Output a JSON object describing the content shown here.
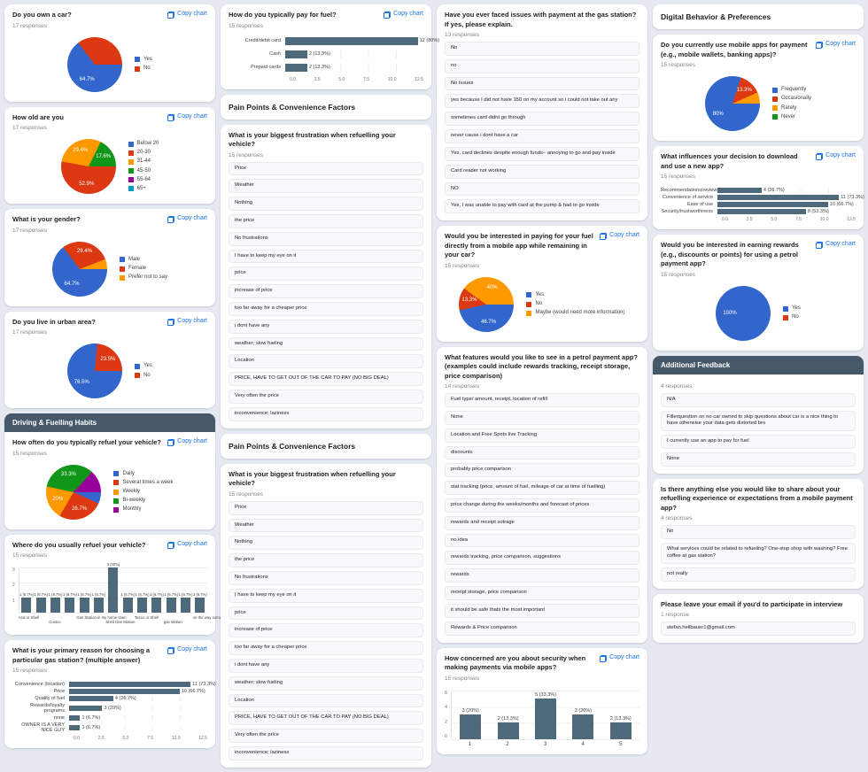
{
  "ui": {
    "copy_chart": "Copy chart",
    "background": "#e6e9f1",
    "link_color": "#1a73e8",
    "bar_color": "#4e6a7a",
    "section_dark_bg": "#46596a",
    "pie_palette": [
      "#3366cc",
      "#dc3912",
      "#ff9900",
      "#109618",
      "#990099",
      "#0099c6"
    ]
  },
  "columns": [
    {
      "cards": [
        {
          "type": "pie",
          "copy": true,
          "title": "Do you own a car?",
          "responses": "17 responses",
          "legend": [
            "Yes",
            "No"
          ],
          "slices": [
            {
              "ci": 0,
              "v": 64.7,
              "label": "64.7%"
            },
            {
              "ci": 1,
              "v": 35.3,
              "label": ""
            }
          ]
        },
        {
          "type": "pie",
          "copy": true,
          "title": "How old are you",
          "responses": "17 responses",
          "legend": [
            "Below 20",
            "20-30",
            "31-44",
            "45-50",
            "55-64",
            "65+"
          ],
          "slices": [
            {
              "ci": 1,
              "v": 52.9,
              "label": "52.9%"
            },
            {
              "ci": 2,
              "v": 29.4,
              "label": "29.4%"
            },
            {
              "ci": 3,
              "v": 17.6,
              "label": "17.6%"
            }
          ]
        },
        {
          "type": "pie",
          "copy": true,
          "title": "What is your gender?",
          "responses": "17 responses",
          "legend": [
            "Male",
            "Female",
            "Prefer not to say"
          ],
          "slices": [
            {
              "ci": 0,
              "v": 64.7,
              "label": "64.7%"
            },
            {
              "ci": 1,
              "v": 29.4,
              "label": "29.4%"
            },
            {
              "ci": 2,
              "v": 5.9,
              "label": ""
            }
          ]
        },
        {
          "type": "pie",
          "copy": true,
          "title": "Do you live in urban area?",
          "responses": "17 responses",
          "legend": [
            "Yes",
            "No"
          ],
          "slices": [
            {
              "ci": 0,
              "v": 76.5,
              "label": "76.5%"
            },
            {
              "ci": 1,
              "v": 23.5,
              "label": "23.5%"
            }
          ]
        },
        {
          "type": "section",
          "dark": true,
          "title": "Driving & Fuelling Habits"
        },
        {
          "type": "pie",
          "copy": true,
          "attached": true,
          "title": "How often do you typically refuel your vehicle?",
          "responses": "15 responses",
          "legend": [
            "Daily",
            "Several times a week",
            "Weekly",
            "Bi-weekly",
            "Monthly"
          ],
          "slices": [
            {
              "ci": 0,
              "v": 6.7,
              "label": ""
            },
            {
              "ci": 1,
              "v": 26.7,
              "label": "26.7%"
            },
            {
              "ci": 2,
              "v": 20,
              "label": "20%"
            },
            {
              "ci": 3,
              "v": 33.3,
              "label": "33.3%"
            },
            {
              "ci": 4,
              "v": 13.3,
              "label": ""
            }
          ]
        },
        {
          "type": "vbar",
          "dense": true,
          "copy": true,
          "title": "Where do you usually refuel your vehicle?",
          "responses": "15 responses",
          "ymax": 3,
          "yticks": [
            "3",
            "2",
            "1",
            ""
          ],
          "bars": [
            {
              "v": 1,
              "t": "1 (6.7%)"
            },
            {
              "v": 1,
              "t": "1 (6.7%)"
            },
            {
              "v": 1,
              "t": "1 (6.7%)"
            },
            {
              "v": 1,
              "t": "1 (6.7%)"
            },
            {
              "v": 1,
              "t": "1 (6.7%)"
            },
            {
              "v": 1,
              "t": "1 (6.7%)"
            },
            {
              "v": 3,
              "t": "3 (20%)"
            },
            {
              "v": 1,
              "t": "1 (6.7%)"
            },
            {
              "v": 1,
              "t": "1 (6.7%)"
            },
            {
              "v": 1,
              "t": "1 (6.7%)"
            },
            {
              "v": 1,
              "t": "1 (6.7%)"
            },
            {
              "v": 1,
              "t": "1 (6.7%)"
            },
            {
              "v": 1,
              "t": "1 (6.7%)"
            }
          ],
          "xlabels": [
            "Aral or Shell",
            "",
            "Costco",
            "",
            "Gas Station in my home town",
            "",
            "Shell Gas Station",
            "",
            "Tesco or Shell",
            "",
            "gas station",
            "",
            "on the way somewhere"
          ]
        },
        {
          "type": "hbar",
          "copy": true,
          "title": "What is your primary reason for choosing a particular gas station? (multiple answer)",
          "responses": "15 responses",
          "xmax": 12.5,
          "xticks": [
            "0.0",
            "2.5",
            "5.0",
            "7.5",
            "10.0",
            "12.5"
          ],
          "bars": [
            {
              "label": "Convenience (location)",
              "v": 11,
              "t": "11 (73.3%)"
            },
            {
              "label": "Price",
              "v": 10,
              "t": "10 (66.7%)"
            },
            {
              "label": "Quality of fuel",
              "v": 4,
              "t": "4 (26.7%)"
            },
            {
              "label": "Rewards/loyalty programs",
              "v": 3,
              "t": "3 (20%)"
            },
            {
              "label": "none",
              "v": 1,
              "t": "1 (6.7%)"
            },
            {
              "label": "OWNER IS A VERY NICE GUY",
              "v": 1,
              "t": "1 (6.7%)"
            }
          ]
        }
      ]
    },
    {
      "cards": [
        {
          "type": "hbar",
          "thick": true,
          "copy": true,
          "title": "How do you typically pay for fuel?",
          "responses": "15 responses",
          "xmax": 12.5,
          "xticks": [
            "0.0",
            "2.5",
            "5.0",
            "7.5",
            "10.0",
            "12.5"
          ],
          "bars": [
            {
              "label": "Credit/debit card",
              "v": 12,
              "t": "12 (80%)"
            },
            {
              "label": "Cash",
              "v": 2,
              "t": "2 (13.3%)"
            },
            {
              "label": "Prepaid cards",
              "v": 2,
              "t": "2 (13.3%)"
            }
          ]
        },
        {
          "type": "section",
          "dark": false,
          "title": "Pain Points & Convenience Factors"
        },
        {
          "type": "list",
          "title": "What is your biggest frustration when refuelling your vehicle?",
          "responses": "15 responses",
          "items": [
            "Price",
            "Weather",
            "Nothing",
            "the price",
            "No frustrations",
            "I have to keep my eye on it",
            "price",
            "increase of price",
            "too far away for a cheaper price",
            "i dont have any",
            "weather; slow fueling",
            "Location",
            "PRICE, HAVE TO GET OUT OF THE CAR TO PAY (NO BIG DEAL)",
            "Very often the price",
            "inconvenience; laziness"
          ]
        },
        {
          "type": "section",
          "dark": false,
          "title": "Pain Points & Convenience Factors"
        },
        {
          "type": "list",
          "title": "What is your biggest frustration when refuelling your vehicle?",
          "responses": "15 responses",
          "items": [
            "Price",
            "Weather",
            "Nothing",
            "the price",
            "No frustrations",
            "I have to keep my eye on it",
            "price",
            "increase of price",
            "too far away for a cheaper price",
            "i dont have any",
            "weather; slow fueling",
            "Location",
            "PRICE, HAVE TO GET OUT OF THE CAR TO PAY (NO BIG DEAL)",
            "Very often the price",
            "inconvenience; laziness"
          ]
        }
      ]
    },
    {
      "cards": [
        {
          "type": "list",
          "title": "Have you ever faced issues with payment at the gas station? If yes, please explain.",
          "responses": "13 responses",
          "items": [
            "No",
            "no",
            "No issues",
            "yes because I did not have 150 on my account so i could not take out any",
            "sometimes card didnt go through",
            "never cause i dont have a car",
            "Yes, card declines despite enough funds– annoying to go and pay inside",
            "Card reader not working",
            "NO",
            "Yes, I was unable to pay with card at the pump & had to go inside"
          ]
        },
        {
          "type": "pie",
          "copy": true,
          "title": "Would you be interested in paying for your fuel directly from a mobile app while remaining in your car?",
          "responses": "15 responses",
          "legend": [
            "Yes",
            "No",
            "Maybe (would need more information)"
          ],
          "slices": [
            {
              "ci": 0,
              "v": 46.7,
              "label": "46.7%"
            },
            {
              "ci": 1,
              "v": 13.3,
              "label": "13.3%"
            },
            {
              "ci": 2,
              "v": 40,
              "label": "40%"
            }
          ]
        },
        {
          "type": "list",
          "title": "What features would you like to see in a petrol payment app? (examples could include rewards tracking, receipt storage, price comparison)",
          "responses": "14 responses",
          "items": [
            "Fuel type/ amount, receipt, location of refill",
            "None",
            "Location and Free Spots live Tracking",
            "discounts",
            "probably price comparison",
            "stat tracking (price, amount of fuel, mileage of car at time of fuelling)",
            "price change during the weeks/months and forecast of prices",
            "rewards and receipt sotrage",
            "no idea",
            "rewards tracking, price comparison, suggestions",
            "rewards",
            "receipt storage, price comparison",
            "it should be safe thats the most important",
            "Rewards & Price comparison"
          ]
        },
        {
          "type": "vbar",
          "copy": true,
          "title": "How concerned are you about security when making payments via mobile apps?",
          "responses": "15 responses",
          "ymax": 6,
          "yticks": [
            "6",
            "4",
            "2",
            "0"
          ],
          "bars": [
            {
              "v": 3,
              "t": "3 (20%)"
            },
            {
              "v": 2,
              "t": "2 (13.3%)"
            },
            {
              "v": 5,
              "t": "5 (33.3%)"
            },
            {
              "v": 3,
              "t": "3 (20%)"
            },
            {
              "v": 2,
              "t": "2 (13.3%)"
            }
          ],
          "xlabels": [
            "1",
            "2",
            "3",
            "4",
            "5"
          ]
        }
      ]
    },
    {
      "cards": [
        {
          "type": "section",
          "dark": false,
          "title": "Digital Behavior & Preferences"
        },
        {
          "type": "pie",
          "copy": true,
          "title": "Do you currently use mobile apps for payment (e.g., mobile wallets, banking apps)?",
          "responses": "15 responses",
          "legend": [
            "Frequently",
            "Occasionally",
            "Rarely",
            "Never"
          ],
          "slices": [
            {
              "ci": 0,
              "v": 80,
              "label": "80%"
            },
            {
              "ci": 1,
              "v": 13.3,
              "label": "13.3%"
            },
            {
              "ci": 2,
              "v": 6.7,
              "label": ""
            }
          ]
        },
        {
          "type": "hbar",
          "copy": true,
          "title": "What influences your decision to download and use a new app?",
          "responses": "15 responses",
          "xmax": 12.5,
          "xticks": [
            "0.0",
            "2.5",
            "5.0",
            "7.5",
            "10.0",
            "12.5"
          ],
          "bars": [
            {
              "label": "Recommendations/reviews",
              "v": 4,
              "t": "4 (26.7%)"
            },
            {
              "label": "Convenience of service",
              "v": 11,
              "t": "11 (73.3%)"
            },
            {
              "label": "Ease of use",
              "v": 10,
              "t": "10 (66.7%)"
            },
            {
              "label": "Security/trustworthiness",
              "v": 8,
              "t": "8 (53.3%)"
            }
          ]
        },
        {
          "type": "pie",
          "copy": true,
          "title": "Would you be interested in earning rewards (e.g., discounts or points) for using a petrol payment app?",
          "responses": "15 responses",
          "legend": [
            "Yes",
            "No"
          ],
          "slices": [
            {
              "ci": 0,
              "v": 100,
              "label": "100%"
            }
          ]
        },
        {
          "type": "section",
          "dark": true,
          "title": "Additional Feedback"
        },
        {
          "type": "list",
          "attached": true,
          "responses": "4 responses",
          "items": [
            "N/A",
            "Fillerquestion on no car owned to skip questions about car is a nice thing to have otherwise your data gets distorted bro",
            "I currently use an app to pay for fuel",
            "None"
          ]
        },
        {
          "type": "list",
          "title": "Is there anything else you would like to share about your refuelling experience or expectations from a mobile payment app?",
          "responses": "4 responses",
          "items": [
            "No",
            "What services could be related to refueling? One-stop shop with washing? Free coffee at gas station?",
            "not really"
          ]
        },
        {
          "type": "list",
          "title": "Please leave your email if you'd to participate in interview",
          "responses": "1 response",
          "items": [
            "stefan.hellbauer1@gmail.com"
          ]
        }
      ]
    }
  ]
}
